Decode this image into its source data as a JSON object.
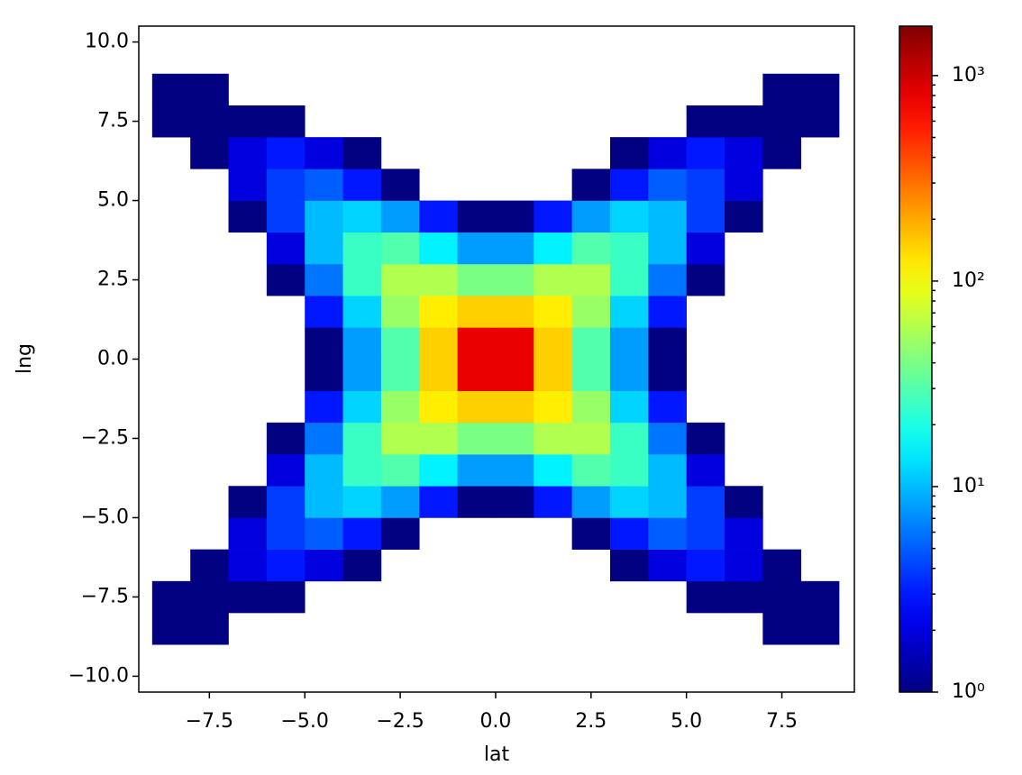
{
  "chart_data": {
    "type": "hist2d",
    "xlabel": "lat",
    "ylabel": "lng",
    "colormap": "jet",
    "color_scale": "log",
    "xlim": [
      -9.35,
      9.4
    ],
    "ylim": [
      -10.5,
      10.5
    ],
    "xticks": [
      {
        "value": -7.5,
        "label": "−7.5"
      },
      {
        "value": -5,
        "label": "−5.0"
      },
      {
        "value": -2.5,
        "label": "−2.5"
      },
      {
        "value": 0,
        "label": "0.0"
      },
      2.5,
      {
        "value": 5,
        "label": "5.0"
      },
      7.5
    ],
    "yticks": [
      {
        "value": -10,
        "label": "−10.0"
      },
      {
        "value": -7.5,
        "label": "−7.5"
      },
      {
        "value": -5,
        "label": "−5.0"
      },
      {
        "value": -2.5,
        "label": "−2.5"
      },
      {
        "value": 0,
        "label": "0.0"
      },
      2.5,
      {
        "value": 5,
        "label": "5.0"
      },
      7.5,
      {
        "value": 10,
        "label": "10.0"
      }
    ],
    "clim": [
      1,
      1740
    ],
    "cticks": [
      {
        "value": 1,
        "label": "10⁰"
      },
      {
        "value": 10,
        "label": "10¹"
      },
      {
        "value": 100,
        "label": "10²"
      },
      {
        "value": 1000,
        "label": "10³"
      }
    ],
    "cminor": [
      2,
      3,
      4,
      5,
      6,
      7,
      8,
      9,
      20,
      30,
      40,
      50,
      60,
      70,
      80,
      90,
      200,
      300,
      400,
      500,
      600,
      700,
      800,
      900
    ],
    "xbins": [
      -9,
      -8,
      -7,
      -6,
      -5,
      -4,
      -3,
      -2,
      -1,
      0,
      1,
      2,
      3,
      4,
      5,
      6,
      7,
      8,
      9
    ],
    "ybins": [
      -10,
      -9,
      -8,
      -7,
      -6,
      -5,
      -4,
      -3,
      -2,
      -1,
      0,
      1,
      2,
      3,
      4,
      5,
      6,
      7,
      8,
      9,
      10
    ],
    "counts": [
      [
        0,
        0,
        0,
        0,
        0,
        0,
        0,
        0,
        0,
        0,
        0,
        0,
        0,
        0,
        0,
        0,
        0,
        0
      ],
      [
        1,
        1,
        0,
        0,
        0,
        0,
        0,
        0,
        0,
        0,
        0,
        0,
        0,
        0,
        0,
        0,
        1,
        1
      ],
      [
        1,
        1,
        1,
        1,
        0,
        0,
        0,
        0,
        0,
        0,
        0,
        0,
        0,
        0,
        1,
        1,
        1,
        1
      ],
      [
        0,
        1,
        2,
        3,
        2,
        1,
        0,
        0,
        0,
        0,
        0,
        0,
        1,
        2,
        3,
        2,
        1,
        0
      ],
      [
        0,
        0,
        2,
        4,
        5,
        3,
        1,
        0,
        0,
        0,
        0,
        1,
        3,
        5,
        4,
        2,
        0,
        0
      ],
      [
        0,
        0,
        1,
        4,
        10,
        12,
        8,
        3,
        1,
        1,
        3,
        8,
        12,
        10,
        4,
        1,
        0,
        0
      ],
      [
        0,
        0,
        0,
        2,
        10,
        25,
        30,
        15,
        8,
        8,
        15,
        30,
        25,
        10,
        2,
        0,
        0,
        0
      ],
      [
        0,
        0,
        0,
        1,
        6,
        25,
        60,
        60,
        40,
        40,
        60,
        60,
        25,
        6,
        1,
        0,
        0,
        0
      ],
      [
        0,
        0,
        0,
        0,
        3,
        12,
        50,
        120,
        150,
        150,
        120,
        50,
        12,
        3,
        0,
        0,
        0,
        0
      ],
      [
        0,
        0,
        0,
        0,
        1,
        8,
        30,
        150,
        800,
        800,
        150,
        30,
        8,
        1,
        0,
        0,
        0,
        0
      ],
      [
        0,
        0,
        0,
        0,
        1,
        8,
        30,
        150,
        800,
        800,
        150,
        30,
        8,
        1,
        0,
        0,
        0,
        0
      ],
      [
        0,
        0,
        0,
        0,
        3,
        12,
        50,
        120,
        150,
        150,
        120,
        50,
        12,
        3,
        0,
        0,
        0,
        0
      ],
      [
        0,
        0,
        0,
        1,
        6,
        25,
        60,
        60,
        40,
        40,
        60,
        60,
        25,
        6,
        1,
        0,
        0,
        0
      ],
      [
        0,
        0,
        0,
        2,
        10,
        25,
        30,
        15,
        8,
        8,
        15,
        30,
        25,
        10,
        2,
        0,
        0,
        0
      ],
      [
        0,
        0,
        1,
        4,
        10,
        12,
        8,
        3,
        1,
        1,
        3,
        8,
        12,
        10,
        4,
        1,
        0,
        0
      ],
      [
        0,
        0,
        2,
        4,
        5,
        3,
        1,
        0,
        0,
        0,
        0,
        1,
        3,
        5,
        4,
        2,
        0,
        0
      ],
      [
        0,
        1,
        2,
        3,
        2,
        1,
        0,
        0,
        0,
        0,
        0,
        0,
        1,
        2,
        3,
        2,
        1,
        0
      ],
      [
        1,
        1,
        1,
        1,
        0,
        0,
        0,
        0,
        0,
        0,
        0,
        0,
        0,
        0,
        1,
        1,
        1,
        1
      ],
      [
        1,
        1,
        0,
        0,
        0,
        0,
        0,
        0,
        0,
        0,
        0,
        0,
        0,
        0,
        0,
        0,
        1,
        1
      ],
      [
        0,
        0,
        0,
        0,
        0,
        0,
        0,
        0,
        0,
        0,
        0,
        0,
        0,
        0,
        0,
        0,
        0,
        0
      ]
    ]
  }
}
